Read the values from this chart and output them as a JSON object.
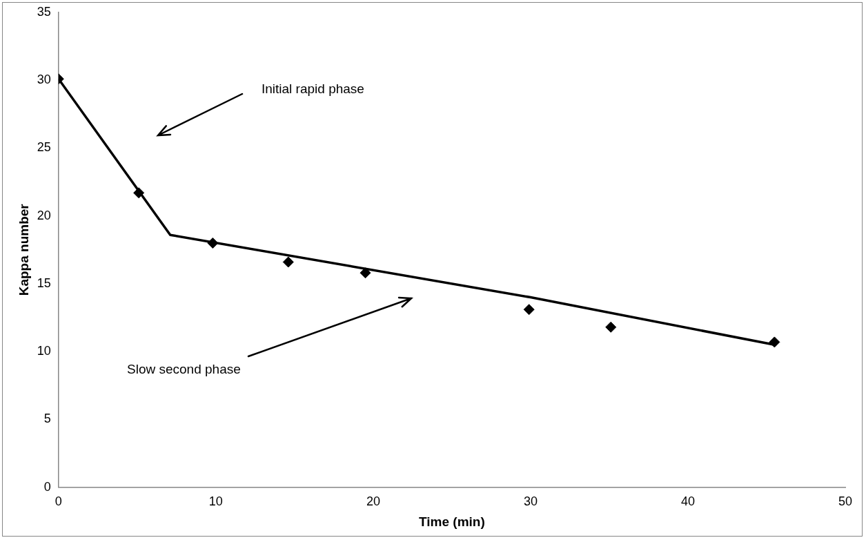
{
  "chart_data": {
    "type": "scatter",
    "xlabel": "Time (min)",
    "ylabel": "Kappa number",
    "xlim": [
      0,
      50
    ],
    "xticks": [
      0,
      10,
      20,
      30,
      40,
      50
    ],
    "ylim": [
      0,
      35
    ],
    "yticks": [
      0,
      5,
      10,
      15,
      20,
      25,
      30,
      35
    ],
    "grid": false,
    "legend": false,
    "series": [
      {
        "type": "line",
        "color": "#000000",
        "x": [
          0,
          7.1,
          30,
          45.5
        ],
        "values": [
          30.1,
          18.6,
          14.0,
          10.5
        ],
        "marker": "none",
        "line_style": "solid"
      },
      {
        "type": "scatter",
        "color": "#000000",
        "x": [
          0,
          5.1,
          9.8,
          14.6,
          19.5,
          29.9,
          35.1,
          45.5
        ],
        "values": [
          30.1,
          21.7,
          18.0,
          16.6,
          15.8,
          13.1,
          11.8,
          10.7
        ],
        "marker": "diamond"
      }
    ],
    "annotations": [
      "Initial rapid phase",
      "Slow second phase"
    ]
  }
}
